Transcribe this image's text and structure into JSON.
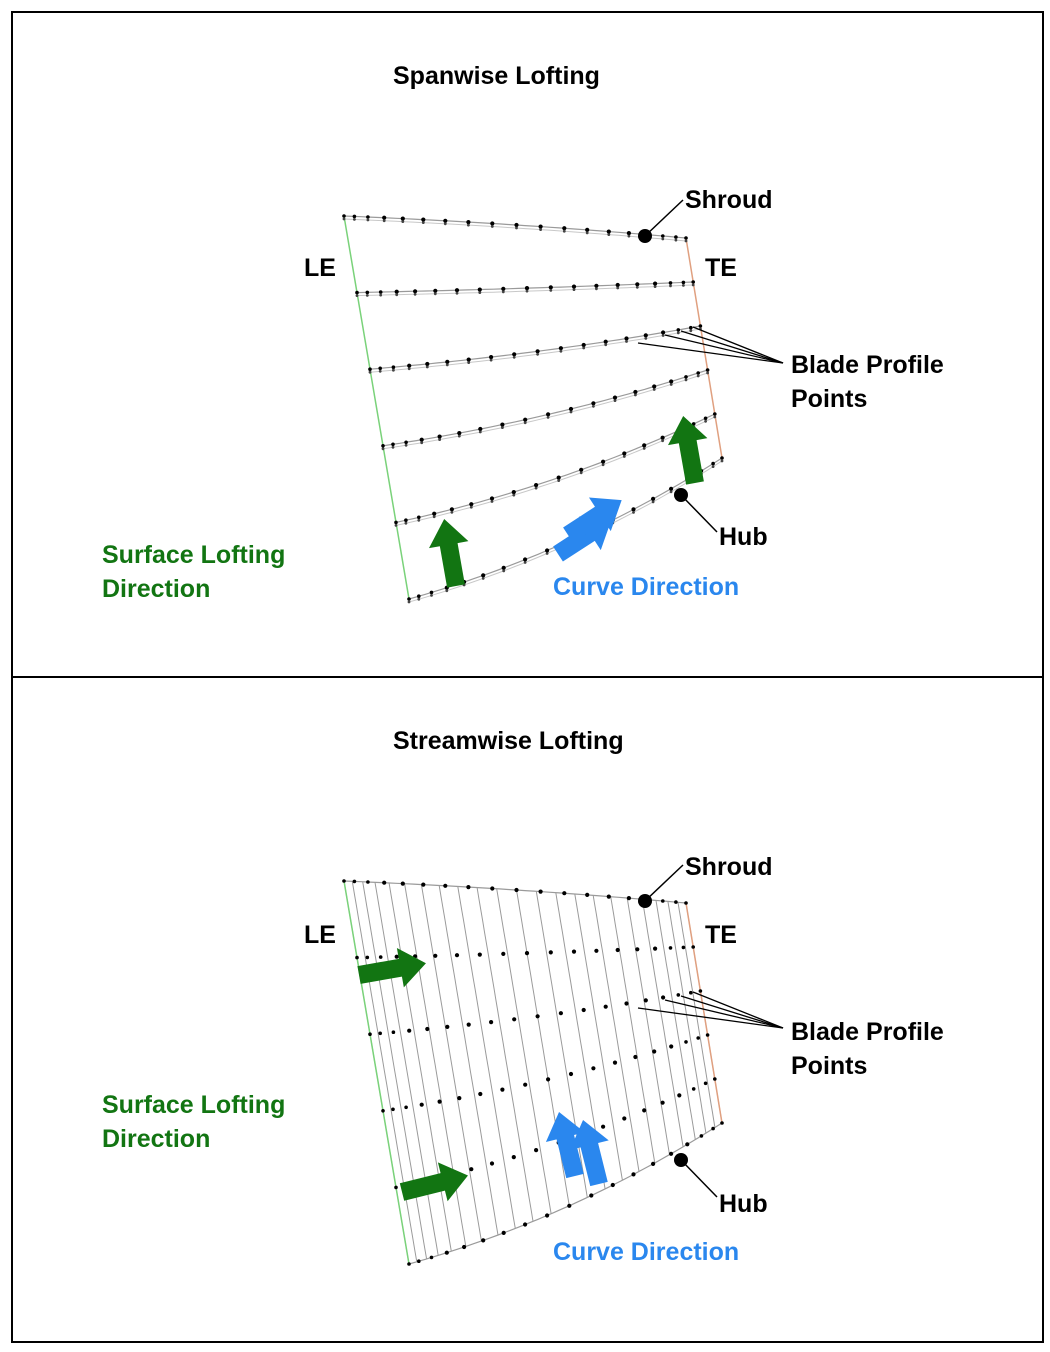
{
  "panels": [
    {
      "title": "Spanwise Lofting",
      "labels": {
        "shroud": "Shroud",
        "le": "LE",
        "te": "TE",
        "blade_profile_line1": "Blade Profile",
        "blade_profile_line2": "Points",
        "hub": "Hub",
        "surface_line1": "Surface Lofting",
        "surface_line2": "Direction",
        "curve": "Curve Direction"
      }
    },
    {
      "title": "Streamwise Lofting",
      "labels": {
        "shroud": "Shroud",
        "le": "LE",
        "te": "TE",
        "blade_profile_line1": "Blade Profile",
        "blade_profile_line2": "Points",
        "hub": "Hub",
        "surface_line1": "Surface Lofting",
        "surface_line2": "Direction",
        "curve": "Curve Direction"
      }
    }
  ],
  "colors": {
    "surface_arrow": "#127512",
    "curve_arrow": "#2a87ee",
    "leading_edge": "#7ad27a",
    "trailing_edge": "#e0a080",
    "grid": "#9a9a9a",
    "points": "#000000"
  }
}
